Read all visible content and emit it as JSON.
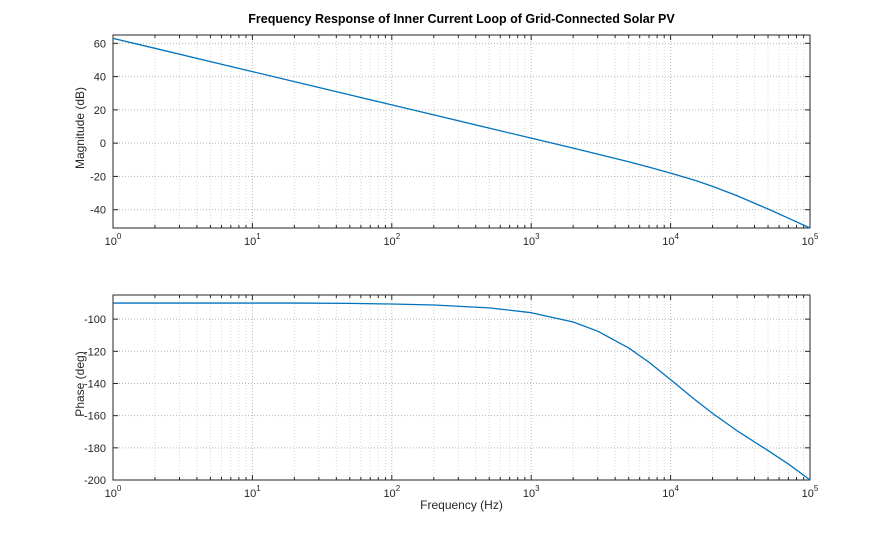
{
  "figure": {
    "title": "Frequency Response of Inner Current Loop of Grid-Connected Solar PV",
    "xlabel": "Frequency (Hz)",
    "background": "#ffffff",
    "axis_color": "#262626",
    "grid_major_color": "#b5b5b5",
    "grid_minor_color": "#d8d8d8"
  },
  "chart_data": [
    {
      "name": "magnitude-plot",
      "type": "line",
      "ylabel": "Magnitude (dB)",
      "xscale": "log",
      "xlim": [
        1,
        100000
      ],
      "ylim": [
        -51,
        65
      ],
      "yticks": [
        -40,
        -20,
        0,
        20,
        40,
        60
      ],
      "xtick_exponents": [
        0,
        1,
        2,
        3,
        4,
        5
      ],
      "x": [
        1,
        2,
        5,
        10,
        20,
        50,
        100,
        200,
        500,
        1000,
        2000,
        3000,
        5000,
        7000,
        10000,
        15000,
        20000,
        30000,
        50000,
        70000,
        100000
      ],
      "y": [
        63,
        57,
        49,
        43,
        37,
        29,
        23,
        17,
        9,
        3,
        -3,
        -6.6,
        -11.2,
        -14.4,
        -18,
        -22.4,
        -26,
        -31.6,
        -39.6,
        -45.1,
        -51
      ],
      "line_color": "#0072BD"
    },
    {
      "name": "phase-plot",
      "type": "line",
      "ylabel": "Phase (deg)",
      "xscale": "log",
      "xlim": [
        1,
        100000
      ],
      "ylim": [
        -200,
        -85
      ],
      "yticks": [
        -200,
        -180,
        -160,
        -140,
        -120,
        -100
      ],
      "xtick_exponents": [
        0,
        1,
        2,
        3,
        4,
        5
      ],
      "x": [
        1,
        2,
        5,
        10,
        20,
        50,
        100,
        200,
        500,
        1000,
        2000,
        3000,
        5000,
        7000,
        10000,
        15000,
        20000,
        30000,
        50000,
        70000,
        100000
      ],
      "y": [
        -90,
        -90,
        -90,
        -90,
        -90,
        -90.2,
        -90.6,
        -91.2,
        -93,
        -96,
        -101.8,
        -107.5,
        -117.9,
        -126.8,
        -137.6,
        -150.2,
        -158.6,
        -169.4,
        -181.7,
        -190.1,
        -200
      ],
      "line_color": "#0072BD"
    }
  ]
}
